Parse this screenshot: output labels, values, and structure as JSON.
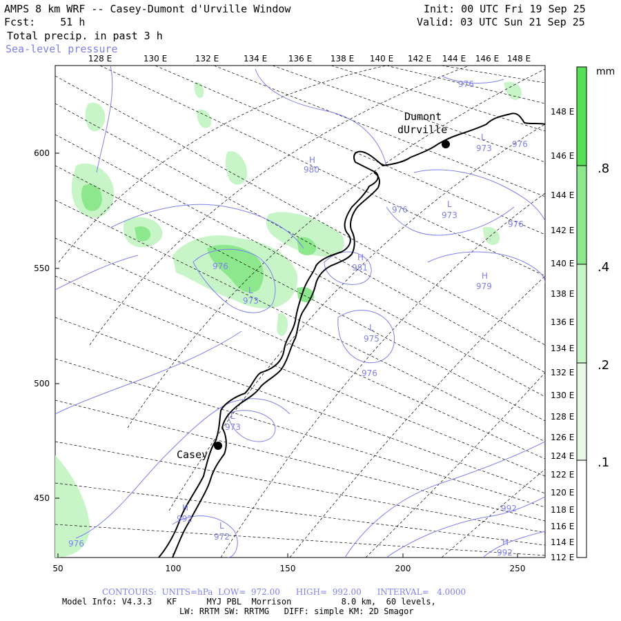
{
  "header": {
    "title": "AMPS 8 km WRF -- Casey-Dumont d'Urville Window",
    "forecast": "Fcst:    51 h",
    "field": "Total precip. in past 3 h",
    "contour_field": "Sea-level pressure",
    "init": "Init: 00 UTC Fri 19 Sep 25",
    "valid": "Valid: 03 UTC Sun 21 Sep 25"
  },
  "map": {
    "top_lon_labels": [
      "128 E",
      "130 E",
      "132 E",
      "134 E",
      "136 E",
      "138 E",
      "140 E",
      "142 E",
      "144 E",
      "146 E",
      "148 E"
    ],
    "right_lon_labels": [
      "148 E",
      "146 E",
      "144 E",
      "142 E",
      "140 E",
      "138 E",
      "136 E",
      "134 E",
      "132 E",
      "130 E",
      "128 E",
      "126 E",
      "124 E",
      "122 E",
      "120 E",
      "118 E",
      "116 E",
      "114 E",
      "112 E"
    ],
    "y_ticks": [
      "600",
      "550",
      "500",
      "450"
    ],
    "x_ticks": [
      "50",
      "100",
      "150",
      "200",
      "250"
    ],
    "stations": [
      {
        "name_line1": "Dumont",
        "name_line2": "dUrville"
      },
      {
        "name_line1": "Casey"
      }
    ],
    "pressure_centers": [
      {
        "type": "H",
        "value": "980"
      },
      {
        "type": "L",
        "value": "973"
      },
      {
        "type": "L",
        "value": "973"
      },
      {
        "type": "H",
        "value": "981"
      },
      {
        "type": "H",
        "value": "979"
      },
      {
        "type": "L",
        "value": "975"
      },
      {
        "type": "L",
        "value": "973"
      },
      {
        "type": "H",
        "value": "992"
      },
      {
        "type": "L",
        "value": "972"
      },
      {
        "type": "H",
        "value": "992"
      },
      {
        "type": "L",
        "value": "973"
      }
    ],
    "isobar_labels": [
      "976",
      "976",
      "976",
      "976",
      "976",
      "976",
      "976",
      "976",
      "992"
    ],
    "colors": {
      "land_line": "#000000",
      "isobar": "#7f7ff0",
      "precip_light": "#c8f5c8",
      "precip_mid": "#8de88d",
      "precip_dark": "#55e055"
    }
  },
  "colorbar": {
    "unit": "mm",
    "levels": [
      ".8",
      ".4",
      ".2",
      ".1"
    ]
  },
  "footer": {
    "contours": "CONTOURS:  UNITS=hPa  LOW=  972.00      HIGH=  992.00      INTERVAL=   4.0000",
    "line1": "Model Info: V4.3.3   KF      MYJ PBL  Morrison          8.0 km,  60 levels,",
    "line2": "LW: RRTM SW: RRTMG   DIFF: simple KM: 2D Smagor"
  }
}
